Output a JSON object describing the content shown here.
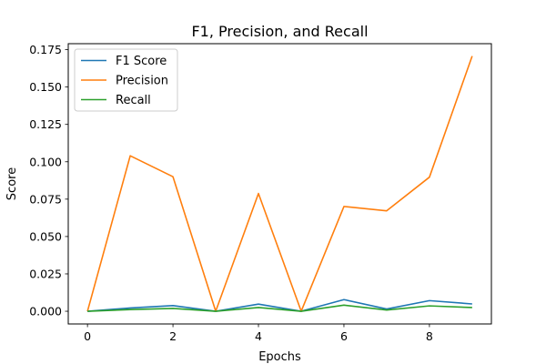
{
  "chart_data": {
    "type": "line",
    "title": "F1, Precision, and Recall",
    "xlabel": "Epochs",
    "ylabel": "Score",
    "x": [
      0,
      1,
      2,
      3,
      4,
      5,
      6,
      7,
      8,
      9
    ],
    "xlim": [
      -0.45,
      9.45
    ],
    "ylim": [
      -0.0085,
      0.179
    ],
    "xticks": [
      0,
      2,
      4,
      6,
      8
    ],
    "yticks": [
      0.0,
      0.025,
      0.05,
      0.075,
      0.1,
      0.125,
      0.15,
      0.175
    ],
    "ytick_labels": [
      "0.000",
      "0.025",
      "0.050",
      "0.075",
      "0.100",
      "0.125",
      "0.150",
      "0.175"
    ],
    "grid": false,
    "legend_position": "top-left",
    "series": [
      {
        "name": "F1 Score",
        "color": "#1f77b4",
        "values": [
          0.0,
          0.0022,
          0.0038,
          0.0,
          0.0048,
          0.0,
          0.0078,
          0.0015,
          0.0071,
          0.0049
        ]
      },
      {
        "name": "Precision",
        "color": "#ff7f0e",
        "values": [
          0.0,
          0.104,
          0.09,
          0.0,
          0.0788,
          0.0,
          0.0701,
          0.0672,
          0.0897,
          0.1707
        ]
      },
      {
        "name": "Recall",
        "color": "#2ca02c",
        "values": [
          0.0,
          0.0011,
          0.0019,
          0.0,
          0.0025,
          0.0,
          0.0041,
          0.0008,
          0.0036,
          0.0025
        ]
      }
    ]
  }
}
